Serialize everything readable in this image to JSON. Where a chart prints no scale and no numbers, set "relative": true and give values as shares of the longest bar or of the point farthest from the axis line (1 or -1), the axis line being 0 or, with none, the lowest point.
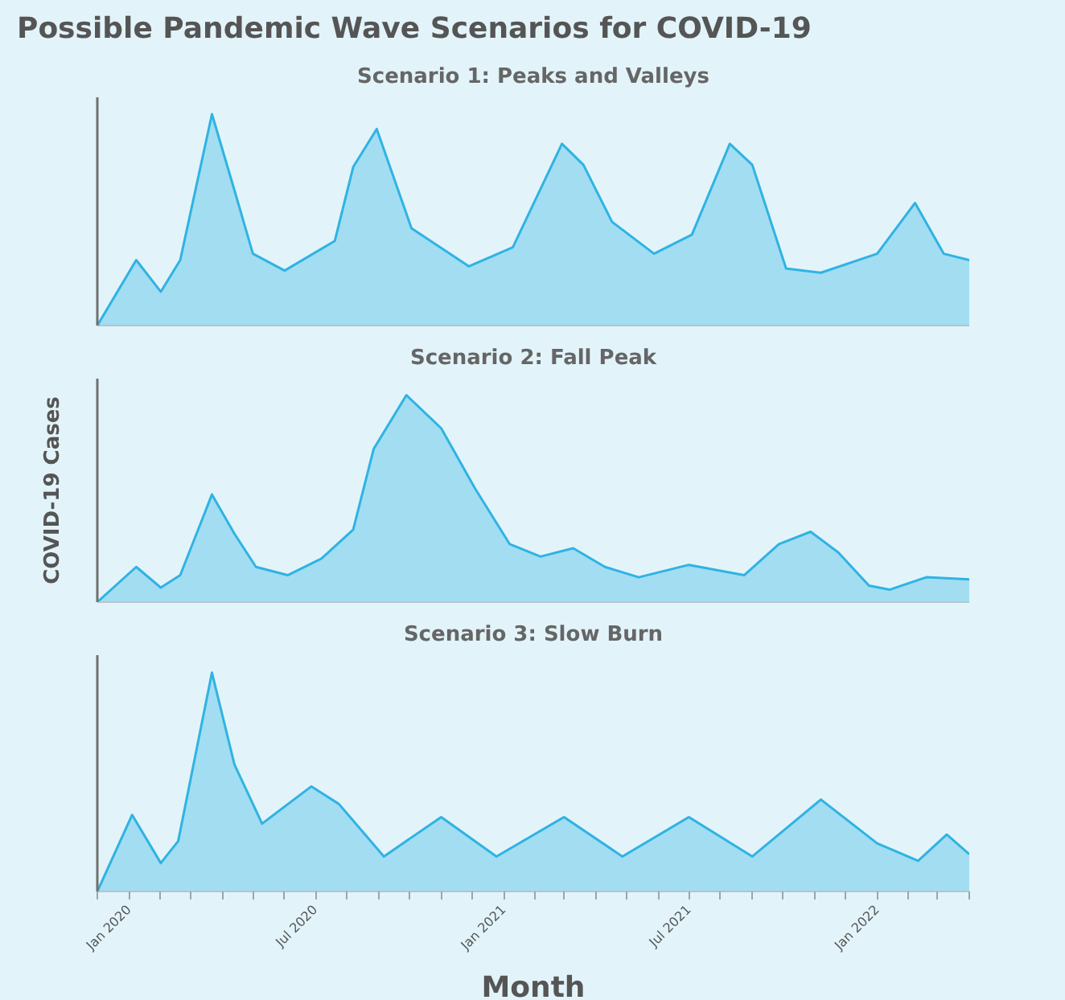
{
  "chart_data": [
    {
      "type": "area",
      "title": "Possible Pandemic Wave Scenarios for COVID-19",
      "subtitle": "Scenario 1: Peaks and Valleys",
      "relative": true,
      "tick_labels": false,
      "xlim": [
        "2019-12-01",
        "2022-04-01"
      ],
      "series": [
        {
          "color": "#2fb3e3",
          "x": [
            "2019-12-01",
            "2020-01-08",
            "2020-02-01",
            "2020-02-20",
            "2020-03-22",
            "2020-04-13",
            "2020-05-01",
            "2020-06-01",
            "2020-07-20",
            "2020-08-07",
            "2020-08-30",
            "2020-10-03",
            "2020-11-28",
            "2021-01-10",
            "2021-02-27",
            "2021-03-20",
            "2021-04-17",
            "2021-05-28",
            "2021-07-04",
            "2021-08-10",
            "2021-09-01",
            "2021-10-04",
            "2021-11-07",
            "2022-01-01",
            "2022-02-07",
            "2022-03-07",
            "2022-04-01"
          ],
          "values": [
            0,
            0.31,
            0.16,
            0.31,
            1,
            0.64,
            0.34,
            0.26,
            0.4,
            0.75,
            0.93,
            0.46,
            0.28,
            0.37,
            0.86,
            0.76,
            0.49,
            0.34,
            0.43,
            0.86,
            0.76,
            0.27,
            0.25,
            0.34,
            0.58,
            0.34,
            0.31
          ]
        }
      ]
    },
    {
      "type": "area",
      "subtitle": "Scenario 2: Fall Peak",
      "ylabel": "COVID-19 Cases",
      "relative": true,
      "tick_labels": false,
      "xlim": [
        "2019-12-01",
        "2022-04-01"
      ],
      "series": [
        {
          "color": "#2fb3e3",
          "x": [
            "2019-12-01",
            "2020-01-08",
            "2020-02-01",
            "2020-02-20",
            "2020-03-22",
            "2020-04-13",
            "2020-05-04",
            "2020-06-04",
            "2020-07-07",
            "2020-08-07",
            "2020-08-27",
            "2020-09-28",
            "2020-11-01",
            "2020-12-04",
            "2021-01-07",
            "2021-02-06",
            "2021-03-10",
            "2021-04-10",
            "2021-05-13",
            "2021-07-01",
            "2021-08-24",
            "2021-09-27",
            "2021-10-28",
            "2021-11-24",
            "2021-12-24",
            "2022-01-13",
            "2022-02-18",
            "2022-04-01"
          ],
          "values": [
            0,
            0.17,
            0.07,
            0.13,
            0.52,
            0.33,
            0.17,
            0.13,
            0.21,
            0.35,
            0.74,
            1,
            0.84,
            0.55,
            0.28,
            0.22,
            0.26,
            0.17,
            0.12,
            0.18,
            0.13,
            0.28,
            0.34,
            0.24,
            0.08,
            0.06,
            0.12,
            0.11
          ]
        }
      ]
    },
    {
      "type": "area",
      "subtitle": "Scenario 3: Slow Burn",
      "xlabel": "Month",
      "relative": true,
      "tick_labels": "x",
      "xlim": [
        "2019-12-01",
        "2022-04-01"
      ],
      "xticks": [
        {
          "value": "2019-12-01",
          "label": null
        },
        {
          "value": "2020-01-01",
          "label": "Jan 2020"
        },
        {
          "value": "2020-02-01",
          "label": null
        },
        {
          "value": "2020-03-01",
          "label": null
        },
        {
          "value": "2020-04-01",
          "label": null
        },
        {
          "value": "2020-05-01",
          "label": null
        },
        {
          "value": "2020-06-01",
          "label": null
        },
        {
          "value": "2020-07-01",
          "label": "Jul 2020"
        },
        {
          "value": "2020-08-01",
          "label": null
        },
        {
          "value": "2020-09-01",
          "label": null
        },
        {
          "value": "2020-10-01",
          "label": null
        },
        {
          "value": "2020-11-01",
          "label": null
        },
        {
          "value": "2020-12-01",
          "label": null
        },
        {
          "value": "2021-01-01",
          "label": "Jan 2021"
        },
        {
          "value": "2021-02-01",
          "label": null
        },
        {
          "value": "2021-03-01",
          "label": null
        },
        {
          "value": "2021-04-01",
          "label": null
        },
        {
          "value": "2021-05-01",
          "label": null
        },
        {
          "value": "2021-06-01",
          "label": null
        },
        {
          "value": "2021-07-01",
          "label": "Jul 2021"
        },
        {
          "value": "2021-08-01",
          "label": null
        },
        {
          "value": "2021-09-01",
          "label": null
        },
        {
          "value": "2021-10-01",
          "label": null
        },
        {
          "value": "2021-11-01",
          "label": null
        },
        {
          "value": "2021-12-01",
          "label": null
        },
        {
          "value": "2022-01-01",
          "label": "Jan 2022"
        },
        {
          "value": "2022-02-01",
          "label": null
        },
        {
          "value": "2022-03-01",
          "label": null
        },
        {
          "value": "2022-04-01",
          "label": null
        }
      ],
      "series": [
        {
          "color": "#2fb3e3",
          "x": [
            "2019-12-01",
            "2020-01-04",
            "2020-02-01",
            "2020-02-18",
            "2020-03-22",
            "2020-04-13",
            "2020-05-10",
            "2020-06-27",
            "2020-07-24",
            "2020-09-06",
            "2020-11-01",
            "2020-12-25",
            "2021-03-01",
            "2021-04-27",
            "2021-07-01",
            "2021-09-01",
            "2021-11-07",
            "2022-01-01",
            "2022-02-10",
            "2022-03-10",
            "2022-04-01"
          ],
          "values": [
            0,
            0.35,
            0.13,
            0.23,
            1,
            0.58,
            0.31,
            0.48,
            0.4,
            0.16,
            0.34,
            0.16,
            0.34,
            0.16,
            0.34,
            0.16,
            0.42,
            0.22,
            0.14,
            0.26,
            0.17
          ]
        }
      ]
    }
  ]
}
